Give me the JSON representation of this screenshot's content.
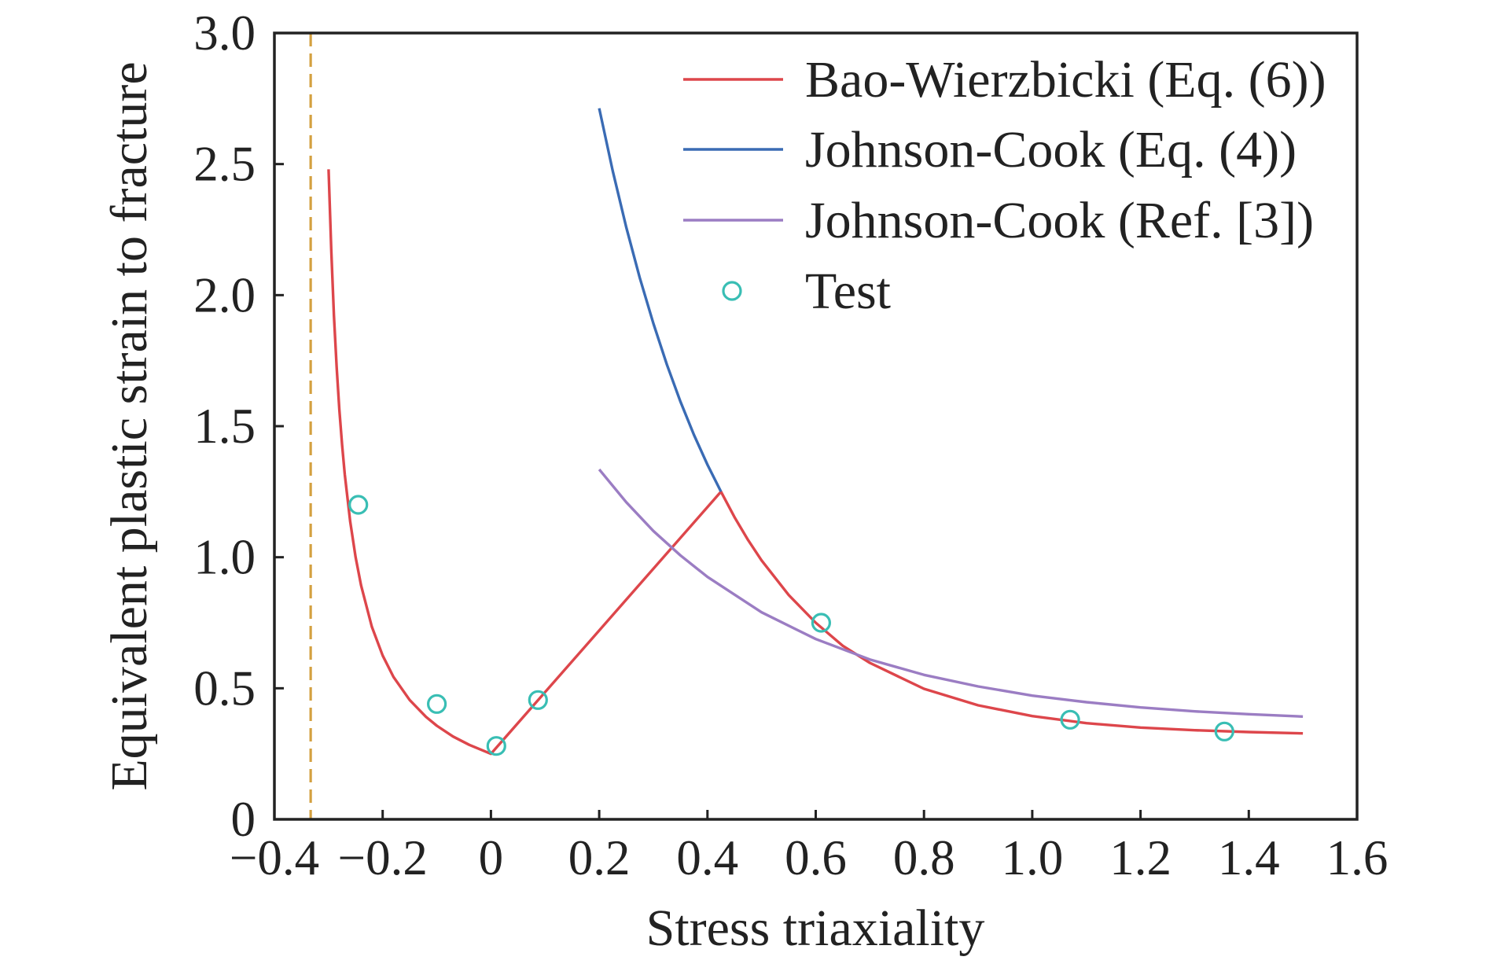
{
  "chart_data": {
    "type": "line",
    "title": "",
    "xlabel": "Stress triaxiality",
    "ylabel": "Equivalent plastic strain to fracture",
    "xlim": [
      -0.4,
      1.6
    ],
    "ylim": [
      0,
      3.0
    ],
    "grid": false,
    "legend": {
      "position": "top-right"
    },
    "x_ticks": [
      {
        "value": -0.4,
        "label": "−0.4"
      },
      {
        "value": -0.2,
        "label": "−0.2"
      },
      {
        "value": 0.0,
        "label": "0"
      },
      {
        "value": 0.2,
        "label": "0.2"
      },
      {
        "value": 0.4,
        "label": "0.4"
      },
      {
        "value": 0.6,
        "label": "0.6"
      },
      {
        "value": 0.8,
        "label": "0.8"
      },
      {
        "value": 1.0,
        "label": "1.0"
      },
      {
        "value": 1.2,
        "label": "1.2"
      },
      {
        "value": 1.4,
        "label": "1.4"
      },
      {
        "value": 1.6,
        "label": "1.6"
      }
    ],
    "y_ticks": [
      {
        "value": 0.0,
        "label": "0"
      },
      {
        "value": 0.5,
        "label": "0.5"
      },
      {
        "value": 1.0,
        "label": "1.0"
      },
      {
        "value": 1.5,
        "label": "1.5"
      },
      {
        "value": 2.0,
        "label": "2.0"
      },
      {
        "value": 2.5,
        "label": "2.5"
      },
      {
        "value": 3.0,
        "label": "3.0"
      }
    ],
    "series": [
      {
        "name": "Bao-Wierzbicki (Eq. (6))",
        "kind": "line",
        "color": "#dd464b",
        "points": [
          [
            -0.3,
            2.48
          ],
          [
            -0.295,
            2.174
          ],
          [
            -0.29,
            1.923
          ],
          [
            -0.285,
            1.724
          ],
          [
            -0.28,
            1.563
          ],
          [
            -0.275,
            1.429
          ],
          [
            -0.27,
            1.316
          ],
          [
            -0.26,
            1.136
          ],
          [
            -0.25,
            1.0
          ],
          [
            -0.24,
            0.893
          ],
          [
            -0.22,
            0.735
          ],
          [
            -0.2,
            0.625
          ],
          [
            -0.18,
            0.543
          ],
          [
            -0.15,
            0.455
          ],
          [
            -0.12,
            0.391
          ],
          [
            -0.1,
            0.357
          ],
          [
            -0.07,
            0.316
          ],
          [
            -0.04,
            0.284
          ],
          [
            0.0,
            0.25
          ],
          [
            0.425,
            1.25
          ],
          [
            0.45,
            1.153
          ],
          [
            0.475,
            1.066
          ],
          [
            0.5,
            0.988
          ],
          [
            0.55,
            0.856
          ],
          [
            0.6,
            0.75
          ],
          [
            0.65,
            0.662
          ],
          [
            0.7,
            0.597
          ],
          [
            0.8,
            0.498
          ],
          [
            0.9,
            0.435
          ],
          [
            1.0,
            0.394
          ],
          [
            1.1,
            0.367
          ],
          [
            1.2,
            0.35
          ],
          [
            1.3,
            0.34
          ],
          [
            1.4,
            0.333
          ],
          [
            1.5,
            0.328
          ]
        ]
      },
      {
        "name": "Johnson-Cook (Eq. (4))",
        "kind": "line",
        "color": "#3a6bb4",
        "points": [
          [
            0.2,
            2.713
          ],
          [
            0.225,
            2.474
          ],
          [
            0.25,
            2.259
          ],
          [
            0.275,
            2.066
          ],
          [
            0.3,
            1.892
          ],
          [
            0.325,
            1.735
          ],
          [
            0.35,
            1.594
          ],
          [
            0.375,
            1.467
          ],
          [
            0.4,
            1.353
          ],
          [
            0.425,
            1.25
          ]
        ]
      },
      {
        "name": "Johnson-Cook (Ref. [3])",
        "kind": "line",
        "color": "#9b7dc3",
        "points": [
          [
            0.2,
            1.335
          ],
          [
            0.25,
            1.21
          ],
          [
            0.3,
            1.1
          ],
          [
            0.35,
            1.007
          ],
          [
            0.4,
            0.925
          ],
          [
            0.5,
            0.79
          ],
          [
            0.6,
            0.688
          ],
          [
            0.7,
            0.61
          ],
          [
            0.8,
            0.551
          ],
          [
            0.9,
            0.507
          ],
          [
            1.0,
            0.472
          ],
          [
            1.1,
            0.447
          ],
          [
            1.2,
            0.427
          ],
          [
            1.3,
            0.412
          ],
          [
            1.4,
            0.401
          ],
          [
            1.5,
            0.392
          ]
        ]
      },
      {
        "name": "Test",
        "kind": "scatter",
        "color": "#39beb4",
        "points": [
          [
            -0.245,
            1.2
          ],
          [
            -0.1,
            0.44
          ],
          [
            0.01,
            0.28
          ],
          [
            0.087,
            0.455
          ],
          [
            0.61,
            0.75
          ],
          [
            1.07,
            0.38
          ],
          [
            1.355,
            0.335
          ]
        ]
      }
    ],
    "reference_lines": [
      {
        "axis": "x",
        "value": -0.333,
        "style": "dashed",
        "color": "#d4a040"
      }
    ]
  }
}
